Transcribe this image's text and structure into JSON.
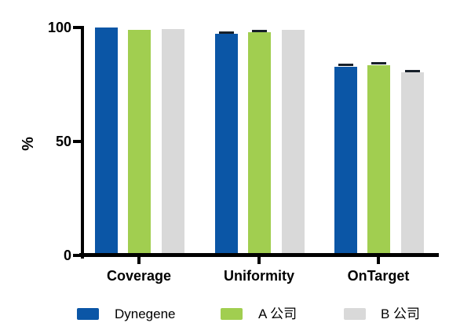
{
  "figure": {
    "background": "#ffffff",
    "axis_color": "#000000",
    "error_bar_color": "#17202A"
  },
  "chart_data": {
    "type": "bar",
    "title": "",
    "xlabel": "",
    "ylabel": "%",
    "ylim": [
      0,
      100
    ],
    "yticks": [
      0,
      50,
      100
    ],
    "grid": false,
    "legend_position": "bottom",
    "categories": [
      "Coverage",
      "Uniformity",
      "OnTarget"
    ],
    "series": [
      {
        "name": "Dynegene",
        "color": "#0B56A6",
        "values": [
          100.0,
          97.3,
          82.9
        ],
        "errors": [
          0,
          0.5,
          0.7
        ]
      },
      {
        "name": "A 公司",
        "color": "#A1CE50",
        "values": [
          98.9,
          97.8,
          83.6
        ],
        "errors": [
          0,
          0.5,
          0.7
        ]
      },
      {
        "name": "B 公司",
        "color": "#D9D9D9",
        "values": [
          99.4,
          99.1,
          80.2
        ],
        "errors": [
          0,
          0,
          0.6
        ]
      }
    ]
  }
}
